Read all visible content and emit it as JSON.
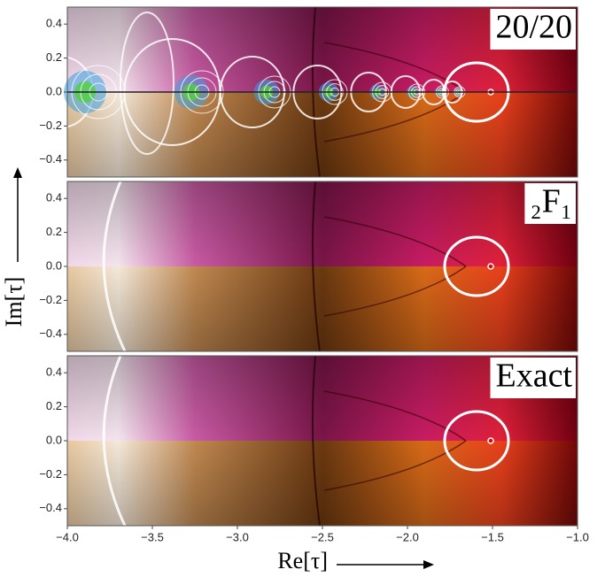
{
  "chart_data": [
    {
      "type": "image",
      "title": "20/20",
      "xlim": [
        -4,
        -1
      ],
      "ylim": [
        -0.5,
        0.5
      ],
      "yticks": [
        0.4,
        0.2,
        {
          "value": 0,
          "label": "0.0"
        },
        {
          "value": -0.2,
          "label": "−0.2"
        },
        {
          "value": -0.4,
          "label": "−0.4"
        }
      ]
    },
    {
      "type": "image",
      "title": "₂F₁",
      "xlim": [
        -4,
        -1
      ],
      "ylim": [
        -0.5,
        0.5
      ],
      "ylabel": "Im[τ]",
      "yticks": [
        0.4,
        0.2,
        {
          "value": 0,
          "label": "0.0"
        },
        {
          "value": -0.2,
          "label": "−0.2"
        },
        {
          "value": -0.4,
          "label": "−0.4"
        }
      ]
    },
    {
      "type": "image",
      "title": "Exact",
      "xlim": [
        -4,
        -1
      ],
      "ylim": [
        -0.5,
        0.5
      ],
      "xlabel": "Re[τ]",
      "yticks": [
        0.4,
        0.2,
        {
          "value": 0,
          "label": "0.0"
        },
        {
          "value": -0.2,
          "label": "−0.2"
        },
        {
          "value": -0.4,
          "label": "−0.4"
        }
      ],
      "xticks": [
        {
          "value": -4,
          "label": "−4.0"
        },
        {
          "value": -3.5,
          "label": "−3.5"
        },
        {
          "value": -3,
          "label": "−3.0"
        },
        {
          "value": -2.5,
          "label": "−2.5"
        },
        {
          "value": -2,
          "label": "−2.0"
        },
        {
          "value": -1.5,
          "label": "−1.5"
        },
        {
          "value": -1,
          "label": "−1.0"
        }
      ]
    }
  ]
}
